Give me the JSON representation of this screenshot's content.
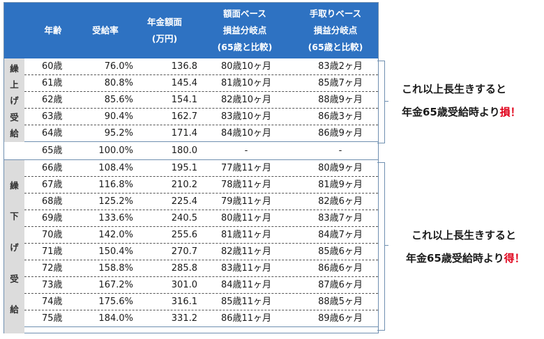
{
  "headers": {
    "age": "年齢",
    "rate": "受給率",
    "amount": "年金額面\n(万円)",
    "face_breakeven": "額面ベース\n損益分岐点\n(65歳と比較)",
    "net_breakeven": "手取りベース\n損益分岐点\n(65歳と比較)"
  },
  "groups": {
    "early": "繰上げ受給",
    "late": "繰下げ受給"
  },
  "rows": [
    {
      "age": "60歳",
      "rate": "76.0%",
      "amount": "136.8",
      "face": "80歳10ヶ月",
      "net": "83歳2ヶ月"
    },
    {
      "age": "61歳",
      "rate": "80.8%",
      "amount": "145.4",
      "face": "81歳10ヶ月",
      "net": "85歳7ヶ月"
    },
    {
      "age": "62歳",
      "rate": "85.6%",
      "amount": "154.1",
      "face": "82歳10ヶ月",
      "net": "88歳9ヶ月"
    },
    {
      "age": "63歳",
      "rate": "90.4%",
      "amount": "162.7",
      "face": "83歳10ヶ月",
      "net": "86歳3ヶ月"
    },
    {
      "age": "64歳",
      "rate": "95.2%",
      "amount": "171.4",
      "face": "84歳10ヶ月",
      "net": "86歳9ヶ月"
    },
    {
      "age": "65歳",
      "rate": "100.0%",
      "amount": "180.0",
      "face": "-",
      "net": "-"
    },
    {
      "age": "66歳",
      "rate": "108.4%",
      "amount": "195.1",
      "face": "77歳11ヶ月",
      "net": "80歳9ヶ月"
    },
    {
      "age": "67歳",
      "rate": "116.8%",
      "amount": "210.2",
      "face": "78歳11ヶ月",
      "net": "81歳9ヶ月"
    },
    {
      "age": "68歳",
      "rate": "125.2%",
      "amount": "225.4",
      "face": "79歳11ヶ月",
      "net": "82歳6ヶ月"
    },
    {
      "age": "69歳",
      "rate": "133.6%",
      "amount": "240.5",
      "face": "80歳11ヶ月",
      "net": "83歳7ヶ月"
    },
    {
      "age": "70歳",
      "rate": "142.0%",
      "amount": "255.6",
      "face": "81歳11ヶ月",
      "net": "84歳7ヶ月"
    },
    {
      "age": "71歳",
      "rate": "150.4%",
      "amount": "270.7",
      "face": "82歳11ヶ月",
      "net": "85歳6ヶ月"
    },
    {
      "age": "72歳",
      "rate": "158.8%",
      "amount": "285.8",
      "face": "83歳11ヶ月",
      "net": "86歳6ヶ月"
    },
    {
      "age": "73歳",
      "rate": "167.2%",
      "amount": "301.0",
      "face": "84歳11ヶ月",
      "net": "87歳6ヶ月"
    },
    {
      "age": "74歳",
      "rate": "175.6%",
      "amount": "316.1",
      "face": "85歳11ヶ月",
      "net": "88歳5ヶ月"
    },
    {
      "age": "75歳",
      "rate": "184.0%",
      "amount": "331.2",
      "face": "86歳11ヶ月",
      "net": "89歳6ヶ月"
    }
  ],
  "notes": {
    "loss_line1": "これ以上長生きすると",
    "loss_line2_prefix": "年金65歳受給時より",
    "loss_accent": "損！",
    "gain_line1": "これ以上長生きすると",
    "gain_line2_prefix": "年金65歳受給時より",
    "gain_accent": "得！"
  },
  "colors": {
    "header_bg": "#2e72c2",
    "accent": "#e0001a",
    "group_bg": "#dcdcdc"
  }
}
